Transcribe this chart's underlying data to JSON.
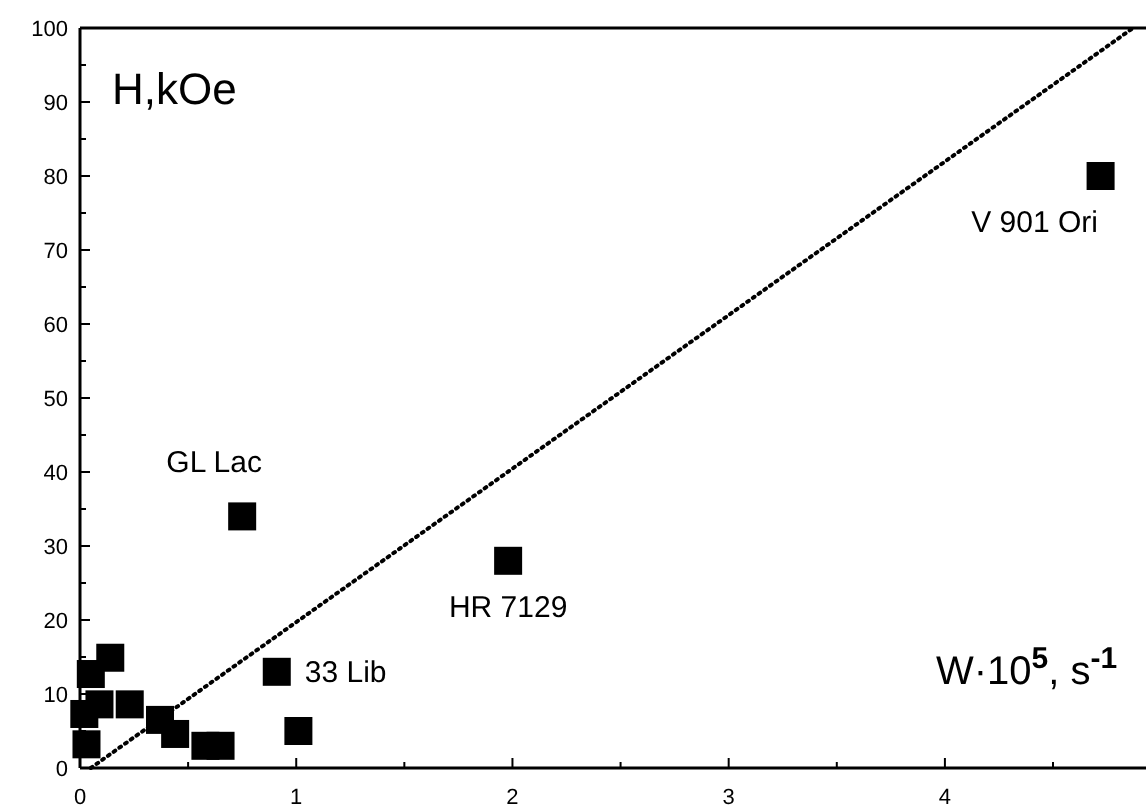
{
  "chart_data": {
    "type": "scatter",
    "xlabel": "W·10$^{5}$, s$^{-1}$",
    "ylabel": "H,kOe",
    "xlim": [
      0,
      4.93
    ],
    "ylim": [
      0,
      100
    ],
    "xticks": [
      0,
      {
        "value": 0.5,
        "label": null
      },
      1,
      {
        "value": 1.5,
        "label": null
      },
      2,
      {
        "value": 2.5,
        "label": null
      },
      3,
      {
        "value": 3.5,
        "label": null
      },
      4,
      {
        "value": 4.5,
        "label": null
      }
    ],
    "yticks": [
      0,
      {
        "value": 5,
        "label": null
      },
      10,
      {
        "value": 15,
        "label": null
      },
      20,
      {
        "value": 25,
        "label": null
      },
      30,
      {
        "value": 35,
        "label": null
      },
      40,
      {
        "value": 45,
        "label": null
      },
      50,
      {
        "value": 55,
        "label": null
      },
      60,
      {
        "value": 65,
        "label": null
      },
      70,
      {
        "value": 75,
        "label": null
      },
      80,
      {
        "value": 85,
        "label": null
      },
      90,
      {
        "value": 95,
        "label": null
      },
      100
    ],
    "marker": "square",
    "series": [
      {
        "color": "#000000",
        "x": [
          4.72,
          1.98,
          0.75,
          0.91,
          1.01,
          0.05,
          0.14,
          0.02,
          0.03,
          0.37,
          0.44,
          0.58,
          0.65,
          0.09,
          0.23
        ],
        "values": [
          80,
          28,
          34,
          13,
          5,
          12.7,
          14.9,
          7.3,
          3.2,
          6.5,
          4.6,
          3,
          3,
          8.6,
          8.6
        ]
      },
      {
        "type": "line",
        "color": "#000000",
        "line_style": "dotted",
        "marker": "none",
        "x": [
          0.05,
          4.87
        ],
        "values": [
          0,
          100
        ]
      }
    ],
    "annotations": [
      {
        "text": "V 901 Ori",
        "x": 4.72,
        "y": 80
      },
      {
        "text": "HR 7129",
        "x": 1.98,
        "y": 28
      },
      {
        "text": "GL Lac",
        "x": 0.75,
        "y": 34
      },
      {
        "text": "33 Lib",
        "x": 0.91,
        "y": 13
      }
    ]
  }
}
